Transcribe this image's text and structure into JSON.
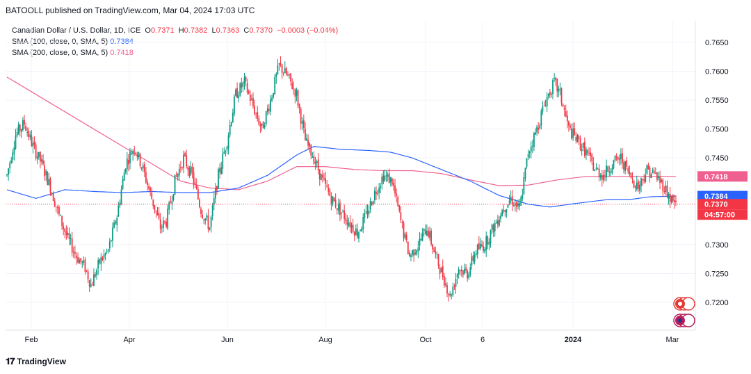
{
  "header": {
    "published": "BATOOLL published on TradingView.com, Mar 04, 2024 17:03 UTC"
  },
  "legend": {
    "symbol": "Canadian Dollar / U.S. Dollar, 1D, ICE",
    "o_label": "O",
    "o_value": "0.7371",
    "h_label": "H",
    "h_value": "0.7382",
    "l_label": "L",
    "l_value": "0.7363",
    "c_label": "C",
    "c_value": "0.7370",
    "change": "−0.0003 (−0.04%)",
    "sma100_label": "SMA (100, close, 0, SMA, 5)",
    "sma100_value": "0.7384",
    "sma200_label": "SMA (200, close, 0, SMA, 5)",
    "sma200_value": "0.7418"
  },
  "footer": {
    "brand": "TradingView"
  },
  "colors": {
    "up": "#089981",
    "down": "#f23645",
    "sma100": "#2962ff",
    "sma200": "#ef5f8f",
    "grid": "#f0f3fa",
    "axis_text": "#131722"
  },
  "chart_data": {
    "type": "candlestick",
    "ylim": [
      0.716,
      0.768
    ],
    "y_ticks": [
      "0.7650",
      "0.7600",
      "0.7550",
      "0.7500",
      "0.7450",
      "0.7300",
      "0.7250",
      "0.7200"
    ],
    "x_ticks": [
      "Feb",
      "Apr",
      "Jun",
      "Aug",
      "Oct",
      "6",
      "2024",
      "Mar"
    ],
    "price_labels": [
      {
        "text": "0.7418",
        "value": 0.7418,
        "color": "#ef5f8f"
      },
      {
        "text": "0.7384",
        "value": 0.7384,
        "color": "#2962ff"
      },
      {
        "text": "0.7370",
        "value": 0.737,
        "color": "#f23645"
      },
      {
        "text": "04:57:00",
        "value": 0.7352,
        "color": "#f23645"
      }
    ],
    "last_price": 0.737,
    "close_anchors": [
      [
        0,
        0.742
      ],
      [
        6,
        0.749
      ],
      [
        12,
        0.751
      ],
      [
        18,
        0.747
      ],
      [
        24,
        0.744
      ],
      [
        30,
        0.74
      ],
      [
        36,
        0.735
      ],
      [
        42,
        0.731
      ],
      [
        48,
        0.728
      ],
      [
        54,
        0.726
      ],
      [
        58,
        0.723
      ],
      [
        64,
        0.727
      ],
      [
        70,
        0.729
      ],
      [
        76,
        0.735
      ],
      [
        82,
        0.744
      ],
      [
        88,
        0.747
      ],
      [
        94,
        0.743
      ],
      [
        100,
        0.738
      ],
      [
        106,
        0.733
      ],
      [
        110,
        0.734
      ],
      [
        116,
        0.741
      ],
      [
        122,
        0.745
      ],
      [
        128,
        0.742
      ],
      [
        134,
        0.736
      ],
      [
        140,
        0.733
      ],
      [
        146,
        0.742
      ],
      [
        152,
        0.748
      ],
      [
        158,
        0.756
      ],
      [
        164,
        0.758
      ],
      [
        170,
        0.754
      ],
      [
        176,
        0.75
      ],
      [
        182,
        0.755
      ],
      [
        188,
        0.761
      ],
      [
        194,
        0.759
      ],
      [
        200,
        0.756
      ],
      [
        206,
        0.748
      ],
      [
        212,
        0.745
      ],
      [
        218,
        0.741
      ],
      [
        224,
        0.738
      ],
      [
        230,
        0.736
      ],
      [
        236,
        0.734
      ],
      [
        242,
        0.732
      ],
      [
        248,
        0.735
      ],
      [
        254,
        0.739
      ],
      [
        260,
        0.742
      ],
      [
        266,
        0.741
      ],
      [
        272,
        0.734
      ],
      [
        278,
        0.728
      ],
      [
        284,
        0.73
      ],
      [
        290,
        0.733
      ],
      [
        296,
        0.728
      ],
      [
        302,
        0.724
      ],
      [
        306,
        0.721
      ],
      [
        312,
        0.726
      ],
      [
        318,
        0.725
      ],
      [
        324,
        0.729
      ],
      [
        330,
        0.73
      ],
      [
        336,
        0.733
      ],
      [
        342,
        0.736
      ],
      [
        348,
        0.738
      ],
      [
        354,
        0.736
      ],
      [
        360,
        0.746
      ],
      [
        366,
        0.75
      ],
      [
        372,
        0.755
      ],
      [
        378,
        0.758
      ],
      [
        382,
        0.756
      ],
      [
        388,
        0.75
      ],
      [
        394,
        0.748
      ],
      [
        400,
        0.746
      ],
      [
        406,
        0.743
      ],
      [
        412,
        0.742
      ],
      [
        418,
        0.744
      ],
      [
        424,
        0.745
      ],
      [
        430,
        0.742
      ],
      [
        436,
        0.74
      ],
      [
        442,
        0.743
      ],
      [
        448,
        0.742
      ],
      [
        454,
        0.74
      ],
      [
        458,
        0.738
      ],
      [
        462,
        0.737
      ]
    ],
    "sma100_anchors": [
      [
        0,
        0.7395
      ],
      [
        20,
        0.738
      ],
      [
        40,
        0.7395
      ],
      [
        60,
        0.7392
      ],
      [
        80,
        0.739
      ],
      [
        100,
        0.7392
      ],
      [
        120,
        0.739
      ],
      [
        140,
        0.739
      ],
      [
        160,
        0.7398
      ],
      [
        180,
        0.742
      ],
      [
        200,
        0.7455
      ],
      [
        212,
        0.747
      ],
      [
        230,
        0.7465
      ],
      [
        250,
        0.7463
      ],
      [
        265,
        0.746
      ],
      [
        280,
        0.745
      ],
      [
        300,
        0.743
      ],
      [
        320,
        0.741
      ],
      [
        340,
        0.7385
      ],
      [
        360,
        0.737
      ],
      [
        375,
        0.7365
      ],
      [
        395,
        0.7372
      ],
      [
        415,
        0.7378
      ],
      [
        430,
        0.7378
      ],
      [
        445,
        0.7383
      ],
      [
        462,
        0.7384
      ]
    ],
    "sma200_anchors": [
      [
        0,
        0.759
      ],
      [
        20,
        0.756
      ],
      [
        40,
        0.753
      ],
      [
        60,
        0.75
      ],
      [
        80,
        0.747
      ],
      [
        100,
        0.744
      ],
      [
        120,
        0.741
      ],
      [
        140,
        0.7398
      ],
      [
        160,
        0.7395
      ],
      [
        180,
        0.741
      ],
      [
        200,
        0.7435
      ],
      [
        220,
        0.7435
      ],
      [
        240,
        0.743
      ],
      [
        260,
        0.7428
      ],
      [
        280,
        0.7428
      ],
      [
        300,
        0.7423
      ],
      [
        320,
        0.7412
      ],
      [
        340,
        0.7402
      ],
      [
        360,
        0.7403
      ],
      [
        380,
        0.7412
      ],
      [
        400,
        0.7418
      ],
      [
        420,
        0.7418
      ],
      [
        440,
        0.7418
      ],
      [
        462,
        0.7418
      ]
    ]
  }
}
